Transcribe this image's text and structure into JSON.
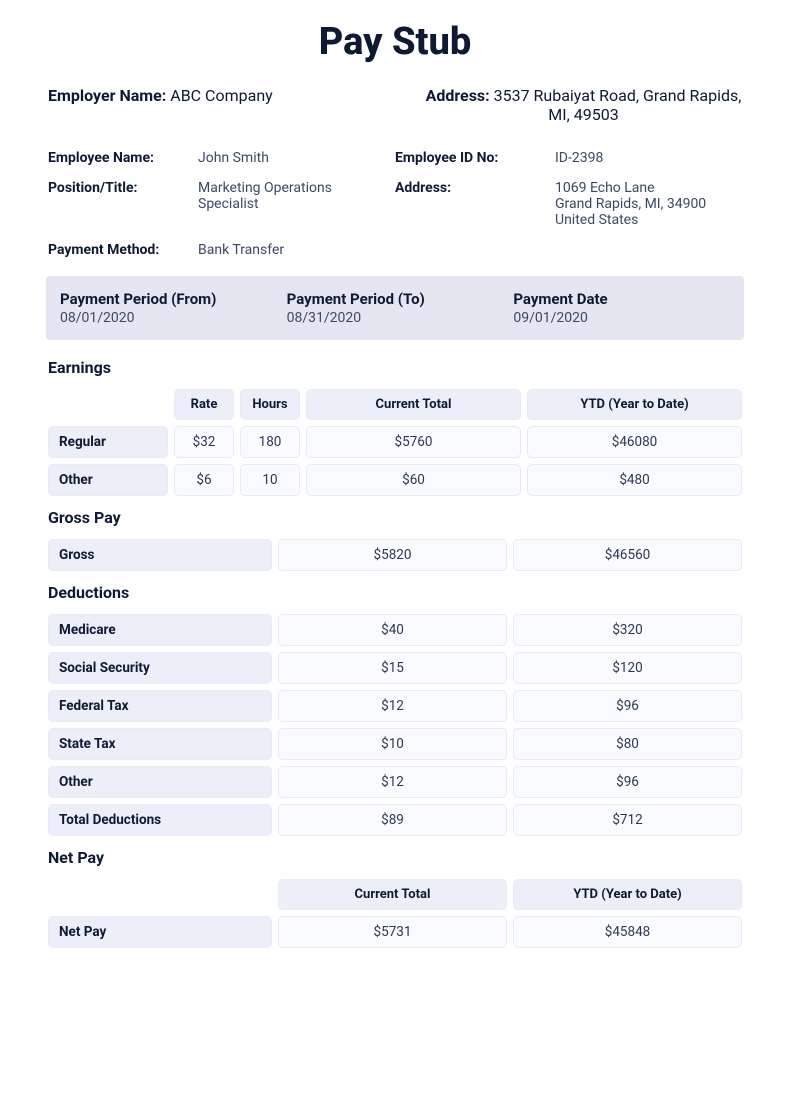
{
  "title": "Pay Stub",
  "employer": {
    "name_label": "Employer Name:",
    "name": "ABC Company",
    "address_label": "Address:",
    "address": "3537 Rubaiyat Road, Grand Rapids, MI, 49503"
  },
  "employee": {
    "name_label": "Employee Name:",
    "name": "John Smith",
    "position_label": "Position/Title:",
    "position": "Marketing Operations Specialist",
    "payment_method_label": "Payment Method:",
    "payment_method": "Bank Transfer",
    "id_label": "Employee ID No:",
    "id": "ID-2398",
    "address_label": "Address:",
    "address_line1": "1069 Echo Lane",
    "address_line2": "Grand Rapids, MI, 34900",
    "address_line3": "United States"
  },
  "period": {
    "from_label": "Payment Period (From)",
    "from": "08/01/2020",
    "to_label": "Payment Period (To)",
    "to": "08/31/2020",
    "date_label": "Payment Date",
    "date": "09/01/2020"
  },
  "earnings": {
    "title": "Earnings",
    "headers": {
      "rate": "Rate",
      "hours": "Hours",
      "current": "Current Total",
      "ytd": "YTD (Year to Date)"
    },
    "rows": [
      {
        "label": "Regular",
        "rate": "$32",
        "hours": "180",
        "current": "$5760",
        "ytd": "$46080"
      },
      {
        "label": "Other",
        "rate": "$6",
        "hours": "10",
        "current": "$60",
        "ytd": "$480"
      }
    ]
  },
  "gross": {
    "title": "Gross Pay",
    "row": {
      "label": "Gross",
      "current": "$5820",
      "ytd": "$46560"
    }
  },
  "deductions": {
    "title": "Deductions",
    "rows": [
      {
        "label": "Medicare",
        "current": "$40",
        "ytd": "$320"
      },
      {
        "label": "Social Security",
        "current": "$15",
        "ytd": "$120"
      },
      {
        "label": "Federal Tax",
        "current": "$12",
        "ytd": "$96"
      },
      {
        "label": "State Tax",
        "current": "$10",
        "ytd": "$80"
      },
      {
        "label": "Other",
        "current": "$12",
        "ytd": "$96"
      },
      {
        "label": "Total Deductions",
        "current": "$89",
        "ytd": "$712"
      }
    ]
  },
  "netpay": {
    "title": "Net Pay",
    "headers": {
      "current": "Current Total",
      "ytd": "YTD (Year to Date)"
    },
    "row": {
      "label": "Net Pay",
      "current": "$5731",
      "ytd": "$45848"
    }
  }
}
